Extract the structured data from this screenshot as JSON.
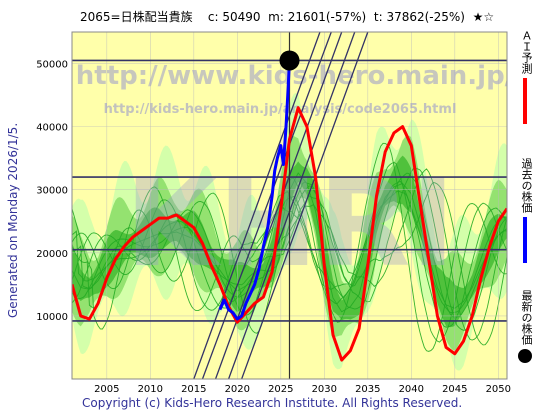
{
  "header": {
    "code_name": "2065=日株配当貴族",
    "c": "c: 50490",
    "m": "m: 21601(-57%)",
    "t": "t: 37862(-25%)",
    "stars": "★☆"
  },
  "side_label": "Generated on Monday 2026/1/5.",
  "footer": "Copyright (c) Kids-Hero Research Institute. All Rights Reserved.",
  "watermark": {
    "url": "http://www.kids-hero.main.jp/",
    "path": "http://kids-hero.main.jp/analysis/code2065.html",
    "logo": "KHRI"
  },
  "legend": {
    "ai_forecast": "ＡＩ予測",
    "past_price": "過去の株価",
    "latest_price": "最新の株価"
  },
  "colors": {
    "plot_bg": "#ffffaa",
    "band_outer": "#ccffaa",
    "band_inner": "#88dd66",
    "band_core": "#44bb33",
    "thin_lines": "#22aa22",
    "ai_forecast": "#ff0000",
    "past_price": "#0000ff",
    "latest": "#000000",
    "trend": "#333366",
    "hlines": "#333366",
    "grid": "#bbbbbb"
  },
  "chart_data": {
    "type": "line",
    "xlim": [
      2001,
      2051
    ],
    "ylim": [
      0,
      55000
    ],
    "x_ticks": [
      2005,
      2010,
      2015,
      2020,
      2025,
      2030,
      2035,
      2040,
      2045,
      2050
    ],
    "y_ticks": [
      10000,
      20000,
      30000,
      40000,
      50000
    ],
    "h_levels": [
      50490,
      32000,
      20500,
      9200
    ],
    "vertical_marker_x": 2026.0,
    "latest_point": {
      "x": 2026.0,
      "y": 50490
    },
    "ai_forecast": {
      "x": [
        2001,
        2002,
        2003,
        2004,
        2005,
        2006,
        2007,
        2008,
        2009,
        2010,
        2011,
        2012,
        2013,
        2014,
        2015,
        2016,
        2017,
        2018,
        2019,
        2020,
        2021,
        2022,
        2023,
        2024,
        2025,
        2026,
        2027,
        2028,
        2029,
        2030,
        2031,
        2032,
        2033,
        2034,
        2035,
        2036,
        2037,
        2038,
        2039,
        2040,
        2041,
        2042,
        2043,
        2044,
        2045,
        2046,
        2047,
        2048,
        2049,
        2050,
        2051
      ],
      "y": [
        15000,
        10000,
        9500,
        12000,
        16000,
        19000,
        21000,
        22500,
        23500,
        24500,
        25500,
        25500,
        26000,
        25000,
        24000,
        21500,
        18000,
        15000,
        11500,
        9000,
        10500,
        12000,
        13000,
        17000,
        27000,
        38000,
        43000,
        40000,
        32000,
        18000,
        7000,
        3000,
        4500,
        8000,
        18000,
        29000,
        36000,
        39000,
        40000,
        37000,
        28000,
        19000,
        10000,
        5000,
        4000,
        6000,
        10000,
        16000,
        21000,
        25000,
        27000
      ]
    },
    "past_price": {
      "x": [
        2018,
        2018.5,
        2019,
        2019.5,
        2020,
        2020.5,
        2021,
        2021.5,
        2022,
        2022.5,
        2023,
        2023.5,
        2024,
        2024.3,
        2024.6,
        2025,
        2025.3,
        2025.6,
        2025.8,
        2026
      ],
      "y": [
        11000,
        12500,
        11000,
        10500,
        9500,
        10000,
        12000,
        13500,
        15000,
        17500,
        21000,
        24000,
        29000,
        33000,
        35000,
        37000,
        34000,
        40000,
        45000,
        50490
      ]
    },
    "trend_lines": [
      {
        "x": [
          2015.0,
          2029.5
        ],
        "y": [
          0,
          55000
        ]
      },
      {
        "x": [
          2016.0,
          2030.8
        ],
        "y": [
          0,
          55000
        ]
      },
      {
        "x": [
          2017.5,
          2032.0
        ],
        "y": [
          0,
          55000
        ]
      },
      {
        "x": [
          2019.0,
          2033.5
        ],
        "y": [
          0,
          55000
        ]
      },
      {
        "x": [
          2020.5,
          2035.0
        ],
        "y": [
          0,
          55000
        ]
      }
    ]
  }
}
